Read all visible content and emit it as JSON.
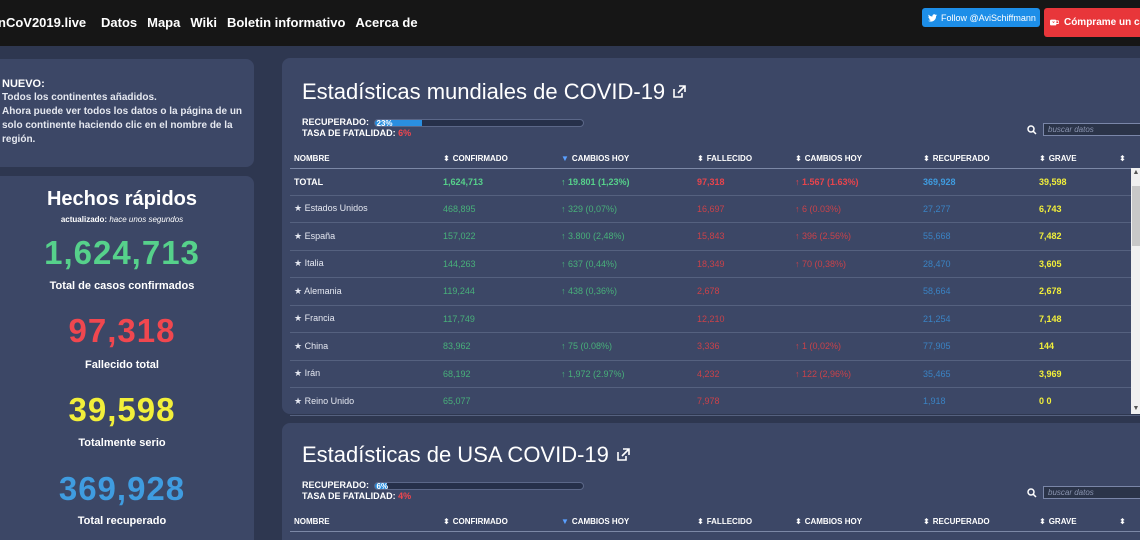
{
  "nav": {
    "brand": "nCoV2019.live",
    "links": [
      "Datos",
      "Mapa",
      "Wiki",
      "Boletin informativo",
      "Acerca de"
    ],
    "follow": "Follow @AviSchiffmann",
    "coffee": "Cómprame un café"
  },
  "news": {
    "title": "NUEVO:",
    "lines": [
      "Todos los continentes añadidos.",
      "Ahora puede ver todos los datos o la página de un",
      "solo continente haciendo clic en el nombre de la",
      "región."
    ]
  },
  "facts": {
    "title": "Hechos rápidos",
    "updated_label": "actualizado:",
    "updated_value": "hace unos segundos",
    "confirmed": "1,624,713",
    "confirmed_label": "Total de casos confirmados",
    "deaths": "97,318",
    "deaths_label": "Fallecido total",
    "serious": "39,598",
    "serious_label": "Totalmente serio",
    "recovered": "369,928",
    "recovered_label": "Total recuperado"
  },
  "colors": {
    "confirmed": "#56d18b",
    "deaths": "#f0474f",
    "serious": "#f2ef3a",
    "recovered": "#3f9ce0"
  },
  "world": {
    "title": "Estadísticas mundiales de COVID-19",
    "recovered_label": "RECUPERADO:",
    "recovered_pct": "23%",
    "recovered_fraction": 0.23,
    "fatality_label": "TASA DE FATALIDAD:",
    "fatality_pct": "6%",
    "search_placeholder": "buscar datos",
    "headers": [
      "NOMBRE",
      "CONFIRMADO",
      "CAMBIOS HOY",
      "FALLECIDO",
      "CAMBIOS HOY",
      "RECUPERADO",
      "GRAVE"
    ],
    "total": [
      "TOTAL",
      "1,624,713",
      "↑ 19.801 (1,23%)",
      "97,318",
      "↑ 1.567 (1.63%)",
      "369,928",
      "39,598"
    ],
    "rows": [
      [
        "Estados Unidos",
        "468,895",
        "↑ 329 (0,07%)",
        "16,697",
        "↑ 6 (0.03%)",
        "27,277",
        "6,743"
      ],
      [
        "España",
        "157,022",
        "↑ 3.800 (2,48%)",
        "15,843",
        "↑ 396 (2.56%)",
        "55,668",
        "7,482"
      ],
      [
        "Italia",
        "144,263",
        "↑ 637 (0,44%)",
        "18,349",
        "↑ 70 (0,38%)",
        "28,470",
        "3,605"
      ],
      [
        "Alemania",
        "119,244",
        "↑ 438 (0,36%)",
        "2,678",
        "",
        "58,664",
        "2,678"
      ],
      [
        "Francia",
        "117,749",
        "",
        "12,210",
        "",
        "21,254",
        "7,148"
      ],
      [
        "China",
        "83,962",
        "↑ 75 (0.08%)",
        "3,336",
        "↑ 1 (0,02%)",
        "77,905",
        "144"
      ],
      [
        "Irán",
        "68,192",
        "↑ 1,972 (2.97%)",
        "4,232",
        "↑ 122 (2,96%)",
        "35,465",
        "3,969"
      ],
      [
        "Reino Unido",
        "65,077",
        "",
        "7,978",
        "",
        "1,918",
        "0 0"
      ]
    ]
  },
  "usa": {
    "title": "Estadísticas de USA COVID-19",
    "recovered_label": "RECUPERADO:",
    "recovered_pct": "6%",
    "recovered_fraction": 0.06,
    "fatality_label": "TASA DE FATALIDAD:",
    "fatality_pct": "4%",
    "search_placeholder": "buscar datos",
    "headers": [
      "NOMBRE",
      "CONFIRMADO",
      "CAMBIOS HOY",
      "FALLECIDO",
      "CAMBIOS HOY",
      "RECUPERADO",
      "GRAVE"
    ]
  }
}
